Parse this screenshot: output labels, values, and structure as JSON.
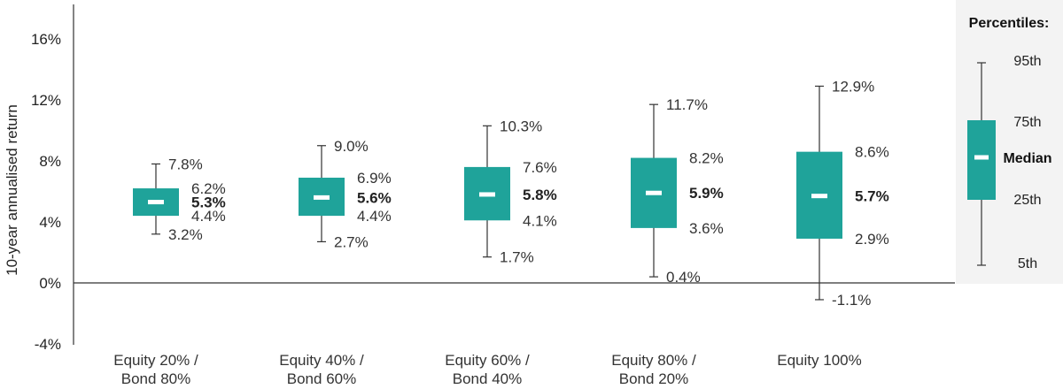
{
  "chart_data": {
    "type": "boxplot",
    "ylabel": "10-year annualised return",
    "ylim": [
      -4,
      16
    ],
    "yticks": [
      -4,
      0,
      4,
      8,
      12,
      16
    ],
    "ytick_labels": [
      "-4%",
      "0%",
      "4%",
      "8%",
      "12%",
      "16%"
    ],
    "categories": [
      [
        "Equity 20% /",
        "Bond 80%"
      ],
      [
        "Equity 40% /",
        "Bond 60%"
      ],
      [
        "Equity 60% /",
        "Bond 40%"
      ],
      [
        "Equity 80% /",
        "Bond 20%"
      ],
      [
        "Equity 100%"
      ]
    ],
    "series": [
      {
        "p5": 3.2,
        "p25": 4.4,
        "median": 5.3,
        "p75": 6.2,
        "p95": 7.8,
        "labels": {
          "p5": "3.2%",
          "p25": "4.4%",
          "median": "5.3%",
          "p75": "6.2%",
          "p95": "7.8%"
        }
      },
      {
        "p5": 2.7,
        "p25": 4.4,
        "median": 5.6,
        "p75": 6.9,
        "p95": 9.0,
        "labels": {
          "p5": "2.7%",
          "p25": "4.4%",
          "median": "5.6%",
          "p75": "6.9%",
          "p95": "9.0%"
        }
      },
      {
        "p5": 1.7,
        "p25": 4.1,
        "median": 5.8,
        "p75": 7.6,
        "p95": 10.3,
        "labels": {
          "p5": "1.7%",
          "p25": "4.1%",
          "median": "5.8%",
          "p75": "7.6%",
          "p95": "10.3%"
        }
      },
      {
        "p5": 0.4,
        "p25": 3.6,
        "median": 5.9,
        "p75": 8.2,
        "p95": 11.7,
        "labels": {
          "p5": "0.4%",
          "p25": "3.6%",
          "median": "5.9%",
          "p75": "8.2%",
          "p95": "11.7%"
        }
      },
      {
        "p5": -1.1,
        "p25": 2.9,
        "median": 5.7,
        "p75": 8.6,
        "p95": 12.9,
        "labels": {
          "p5": "-1.1%",
          "p25": "2.9%",
          "median": "5.7%",
          "p75": "8.6%",
          "p95": "12.9%"
        }
      }
    ],
    "legend": {
      "title": "Percentiles:",
      "p95": "95th",
      "p75": "75th",
      "median": "Median",
      "p25": "25th",
      "p5": "5th",
      "placement": "right"
    },
    "colors": {
      "box": "#1fa39a",
      "median_mark": "#ffffff",
      "whisker": "#333333",
      "legend_bg": "#f3f3f3"
    },
    "grid": false
  }
}
